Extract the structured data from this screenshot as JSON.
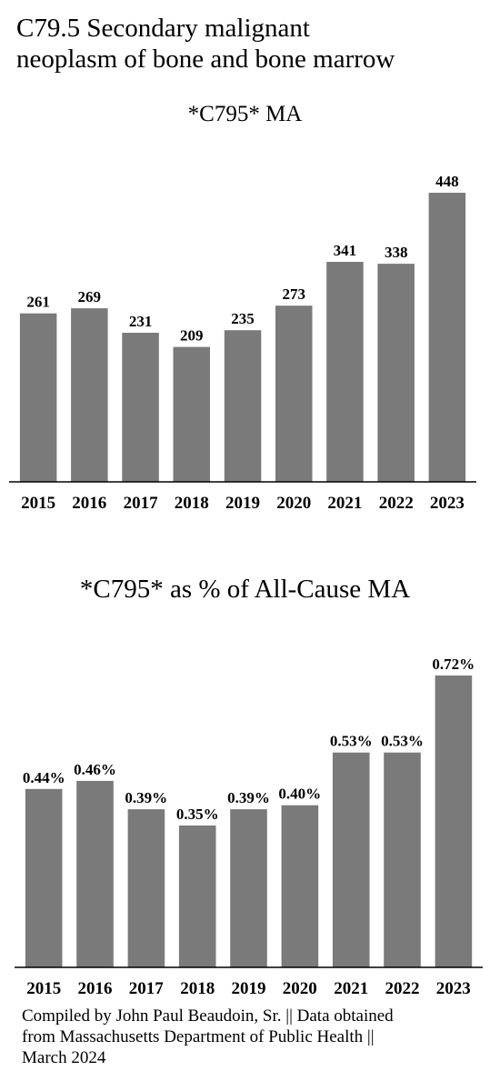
{
  "figure": {
    "title_line1": "C79.5 Secondary malignant",
    "title_line2": "neoplasm of bone and bone marrow",
    "credit_line1": "Compiled by John Paul Beaudoin, Sr. || Data obtained",
    "credit_line2": "from Massachusetts Department of Public Health ||",
    "credit_line3": "March 2024"
  },
  "colors": {
    "bar": "#7a7a7a",
    "axis": "#000000"
  },
  "chart_data": [
    {
      "type": "bar",
      "title": "*C795* MA",
      "categories": [
        "2015",
        "2016",
        "2017",
        "2018",
        "2019",
        "2020",
        "2021",
        "2022",
        "2023"
      ],
      "values": [
        261,
        269,
        231,
        209,
        235,
        273,
        341,
        338,
        448
      ],
      "labels": [
        "261",
        "269",
        "231",
        "209",
        "235",
        "273",
        "341",
        "338",
        "448"
      ],
      "ylim": [
        0,
        448
      ],
      "grid": false,
      "legend": "none"
    },
    {
      "type": "bar",
      "title": "*C795* as % of All-Cause MA",
      "categories": [
        "2015",
        "2016",
        "2017",
        "2018",
        "2019",
        "2020",
        "2021",
        "2022",
        "2023"
      ],
      "values": [
        0.44,
        0.46,
        0.39,
        0.35,
        0.39,
        0.4,
        0.53,
        0.53,
        0.72
      ],
      "labels": [
        "0.44%",
        "0.46%",
        "0.39%",
        "0.35%",
        "0.39%",
        "0.40%",
        "0.53%",
        "0.53%",
        "0.72%"
      ],
      "ylim": [
        0,
        0.72
      ],
      "grid": false,
      "legend": "none"
    }
  ]
}
